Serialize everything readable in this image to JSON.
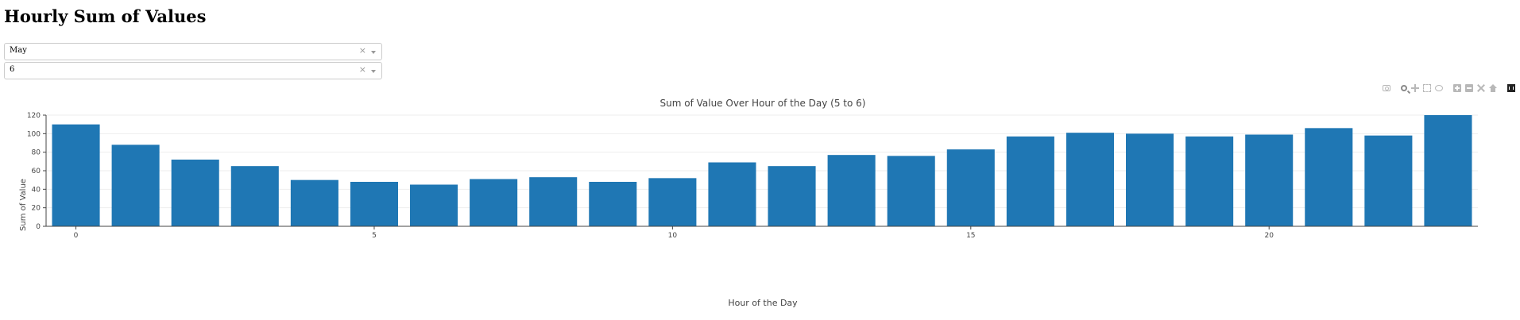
{
  "page": {
    "title": "Hourly Sum of Values"
  },
  "filters": {
    "month": {
      "value": "May",
      "clear_symbol": "×"
    },
    "day": {
      "value": "6",
      "clear_symbol": "×"
    }
  },
  "modebar": {
    "icons": [
      "camera-icon",
      "zoom-icon",
      "pan-icon",
      "box-select-icon",
      "lasso-icon",
      "zoom-in-icon",
      "zoom-out-icon",
      "autoscale-icon",
      "home-icon",
      "plotly-logo-icon"
    ]
  },
  "colors": {
    "bar": "#1f77b4",
    "grid": "#eeeeee",
    "axis": "#444444"
  },
  "chart_data": {
    "type": "bar",
    "title": "Sum of Value Over Hour of the Day (5 to 6)",
    "xlabel": "Hour of the Day",
    "ylabel": "Sum of Value",
    "x": [
      0,
      1,
      2,
      3,
      4,
      5,
      6,
      7,
      8,
      9,
      10,
      11,
      12,
      13,
      14,
      15,
      16,
      17,
      18,
      19,
      20,
      21,
      22,
      23
    ],
    "values": [
      110,
      88,
      72,
      65,
      50,
      48,
      45,
      51,
      53,
      48,
      52,
      69,
      65,
      77,
      76,
      83,
      97,
      101,
      100,
      97,
      99,
      106,
      98,
      120
    ],
    "xticks": [
      0,
      5,
      10,
      15,
      20
    ],
    "yticks": [
      0,
      20,
      40,
      60,
      80,
      100,
      120
    ],
    "xlim": [
      -0.5,
      23.5
    ],
    "ylim": [
      0,
      120
    ],
    "grid": true,
    "legend": "none"
  }
}
